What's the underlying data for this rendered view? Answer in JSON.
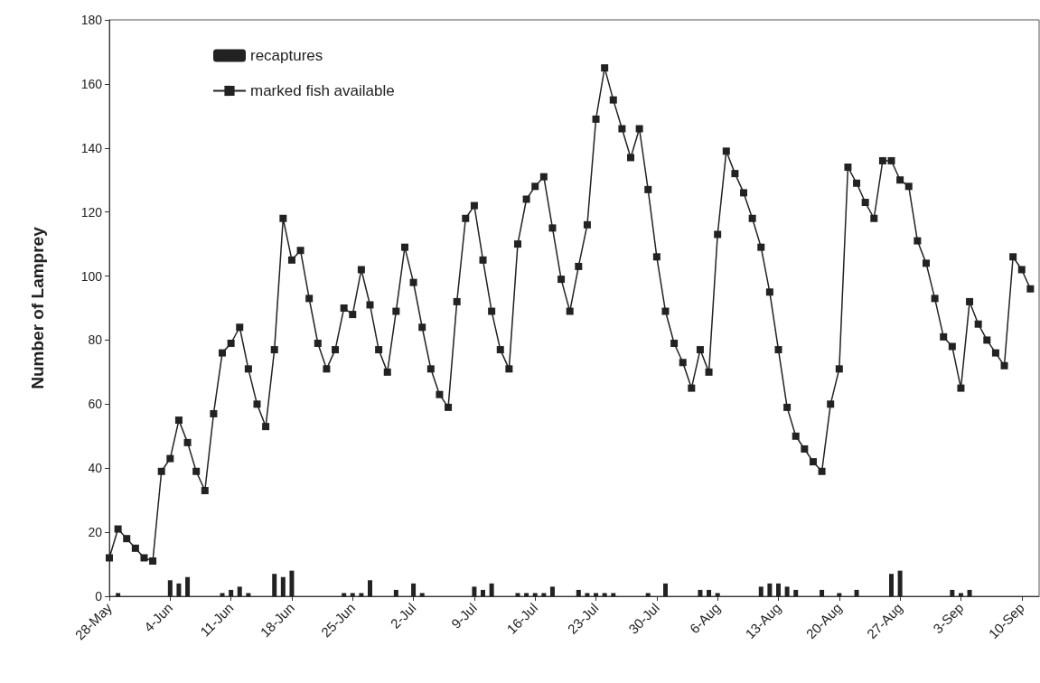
{
  "chart_data": {
    "type": "bar",
    "ylabel": "Number of Lamprey",
    "xlim": [
      "--05-28",
      "--09-12"
    ],
    "xticks": [
      {
        "value": "--05-28",
        "label": "28-May"
      },
      {
        "value": "--06-04",
        "label": "4-Jun"
      },
      {
        "value": "--06-11",
        "label": "11-Jun"
      },
      {
        "value": "--06-18",
        "label": "18-Jun"
      },
      {
        "value": "--06-25",
        "label": "25-Jun"
      },
      {
        "value": "--07-02",
        "label": "2-Jul"
      },
      {
        "value": "--07-09",
        "label": "9-Jul"
      },
      {
        "value": "--07-16",
        "label": "16-Jul"
      },
      {
        "value": "--07-23",
        "label": "23-Jul"
      },
      {
        "value": "--07-30",
        "label": "30-Jul"
      },
      {
        "value": "--08-06",
        "label": "6-Aug"
      },
      {
        "value": "--08-13",
        "label": "13-Aug"
      },
      {
        "value": "--08-20",
        "label": "20-Aug"
      },
      {
        "value": "--08-27",
        "label": "27-Aug"
      },
      {
        "value": "--09-03",
        "label": "3-Sep"
      },
      {
        "value": "--09-10",
        "label": "10-Sep"
      }
    ],
    "ylim": [
      0,
      180
    ],
    "yticks": [
      0,
      20,
      40,
      60,
      80,
      100,
      120,
      140,
      160,
      180
    ],
    "grid": false,
    "legend": "top left",
    "series": [
      {
        "name": "recaptures",
        "color": "#222222",
        "x": [
          "--05-29",
          "--06-04",
          "--06-05",
          "--06-06",
          "--06-10",
          "--06-11",
          "--06-12",
          "--06-13",
          "--06-16",
          "--06-17",
          "--06-18",
          "--06-24",
          "--06-25",
          "--06-26",
          "--06-27",
          "--06-30",
          "--07-02",
          "--07-03",
          "--07-09",
          "--07-10",
          "--07-11",
          "--07-14",
          "--07-15",
          "--07-16",
          "--07-17",
          "--07-18",
          "--07-21",
          "--07-22",
          "--07-23",
          "--07-24",
          "--07-25",
          "--07-29",
          "--07-31",
          "--08-04",
          "--08-05",
          "--08-06",
          "--08-11",
          "--08-12",
          "--08-13",
          "--08-14",
          "--08-15",
          "--08-18",
          "--08-20",
          "--08-22",
          "--08-26",
          "--08-27",
          "--09-02",
          "--09-03",
          "--09-04"
        ],
        "values": [
          1,
          5,
          4,
          6,
          1,
          2,
          3,
          1,
          7,
          6,
          8,
          1,
          1,
          1,
          5,
          2,
          4,
          1,
          3,
          2,
          4,
          1,
          1,
          1,
          1,
          3,
          2,
          1,
          1,
          1,
          1,
          1,
          4,
          2,
          2,
          1,
          3,
          4,
          4,
          3,
          2,
          2,
          1,
          2,
          7,
          8,
          2,
          1,
          2
        ]
      },
      {
        "name": "marked fish available",
        "type": "line",
        "color": "#222222",
        "marker": "square",
        "line_style": "solid",
        "x": [
          "--05-28",
          "--05-29",
          "--05-30",
          "--05-31",
          "--06-01",
          "--06-02",
          "--06-03",
          "--06-04",
          "--06-05",
          "--06-06",
          "--06-07",
          "--06-08",
          "--06-09",
          "--06-10",
          "--06-11",
          "--06-12",
          "--06-13",
          "--06-14",
          "--06-15",
          "--06-16",
          "--06-17",
          "--06-18",
          "--06-19",
          "--06-20",
          "--06-21",
          "--06-22",
          "--06-23",
          "--06-24",
          "--06-25",
          "--06-26",
          "--06-27",
          "--06-28",
          "--06-29",
          "--06-30",
          "--07-01",
          "--07-02",
          "--07-03",
          "--07-04",
          "--07-05",
          "--07-06",
          "--07-07",
          "--07-08",
          "--07-09",
          "--07-10",
          "--07-11",
          "--07-12",
          "--07-13",
          "--07-14",
          "--07-15",
          "--07-16",
          "--07-17",
          "--07-18",
          "--07-19",
          "--07-20",
          "--07-21",
          "--07-22",
          "--07-23",
          "--07-24",
          "--07-25",
          "--07-26",
          "--07-27",
          "--07-28",
          "--07-29",
          "--07-30",
          "--07-31",
          "--08-01",
          "--08-02",
          "--08-03",
          "--08-04",
          "--08-05",
          "--08-06",
          "--08-07",
          "--08-08",
          "--08-09",
          "--08-10",
          "--08-11",
          "--08-12",
          "--08-13",
          "--08-14",
          "--08-15",
          "--08-16",
          "--08-17",
          "--08-18",
          "--08-19",
          "--08-20",
          "--08-21",
          "--08-22",
          "--08-23",
          "--08-24",
          "--08-25",
          "--08-26",
          "--08-27",
          "--08-28",
          "--08-29",
          "--08-30",
          "--08-31",
          "--09-01",
          "--09-02",
          "--09-03",
          "--09-04",
          "--09-05",
          "--09-06",
          "--09-07",
          "--09-08",
          "--09-09",
          "--09-10",
          "--09-11"
        ],
        "values": [
          12,
          21,
          18,
          15,
          12,
          11,
          39,
          43,
          55,
          48,
          39,
          33,
          57,
          76,
          79,
          84,
          71,
          60,
          53,
          77,
          118,
          105,
          108,
          93,
          79,
          71,
          77,
          90,
          88,
          102,
          91,
          77,
          70,
          89,
          109,
          98,
          84,
          71,
          63,
          59,
          92,
          118,
          122,
          105,
          89,
          77,
          71,
          110,
          124,
          128,
          131,
          115,
          99,
          89,
          103,
          116,
          149,
          165,
          155,
          146,
          137,
          146,
          127,
          106,
          89,
          79,
          73,
          65,
          77,
          70,
          113,
          139,
          132,
          126,
          118,
          109,
          95,
          77,
          59,
          50,
          46,
          42,
          39,
          60,
          71,
          134,
          129,
          123,
          118,
          136,
          136,
          130,
          128,
          111,
          104,
          93,
          81,
          78,
          65,
          92,
          85,
          80,
          76,
          72,
          106,
          102,
          96
        ]
      }
    ]
  }
}
